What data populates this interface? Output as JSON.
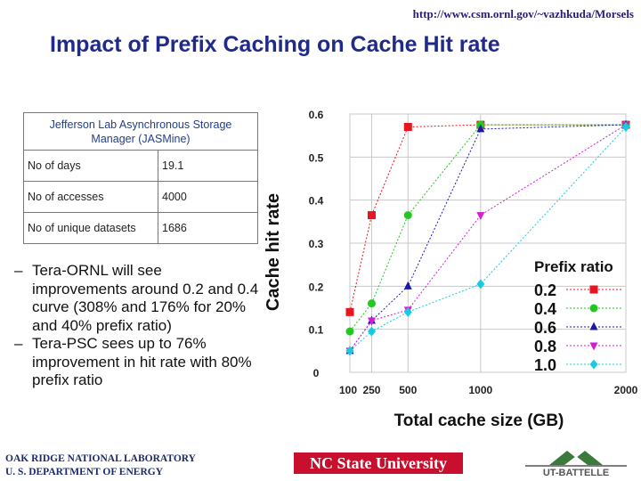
{
  "header": {
    "url": "http://www.csm.ornl.gov/~vazhkuda/Morsels",
    "title": "Impact of Prefix Caching on Cache Hit rate"
  },
  "info_table": {
    "heading": "Jefferson Lab Asynchronous Storage Manager (JASMine)",
    "rows": [
      {
        "label": "No of days",
        "value": "19.1"
      },
      {
        "label": "No of accesses",
        "value": "4000"
      },
      {
        "label": "No of unique datasets",
        "value": "1686"
      }
    ]
  },
  "bullets": [
    {
      "dash": "–",
      "text": "Tera-ORNL will see improvements around 0.2 and 0.4 curve (308% and 176% for 20% and 40% prefix ratio)"
    },
    {
      "dash": "–",
      "text": "Tera-PSC sees up to 76% improvement in hit rate with 80% prefix ratio"
    }
  ],
  "footer": {
    "org_line1": "OAK RIDGE NATIONAL LABORATORY",
    "org_line2": "U. S. DEPARTMENT OF ENERGY",
    "ncstate": "NC State University",
    "ut": "UT-BATTELLE"
  },
  "chart_data": {
    "type": "line",
    "title": "",
    "xlabel": "Total cache size (GB)",
    "ylabel": "Cache hit rate",
    "x": [
      100,
      250,
      500,
      1000,
      2000
    ],
    "x_tick_labels": [
      "100",
      "250",
      "500",
      "1000",
      "2000"
    ],
    "xlim": [
      100,
      2000
    ],
    "ylim": [
      0,
      0.6
    ],
    "y_ticks": [
      0,
      0.1,
      0.2,
      0.3,
      0.4,
      0.5,
      0.6
    ],
    "y_tick_labels": [
      "0",
      "0.1",
      "0.2",
      "0.3",
      "0.4",
      "0.5",
      "0.6"
    ],
    "grid": true,
    "legend_title": "Prefix ratio",
    "legend_position": "lower-right",
    "series": [
      {
        "name": "0.2",
        "color": "#e8141e",
        "marker": "square",
        "values": [
          0.14,
          0.365,
          0.57,
          0.575,
          0.575
        ]
      },
      {
        "name": "0.4",
        "color": "#22c722",
        "marker": "circle",
        "values": [
          0.095,
          0.16,
          0.365,
          0.575,
          0.575
        ]
      },
      {
        "name": "0.6",
        "color": "#1a1aa8",
        "marker": "triangle",
        "values": [
          0.05,
          0.12,
          0.2,
          0.565,
          0.575
        ]
      },
      {
        "name": "0.8",
        "color": "#d81ad8",
        "marker": "triangle-down",
        "values": [
          0.05,
          0.12,
          0.145,
          0.365,
          0.575
        ]
      },
      {
        "name": "1.0",
        "color": "#19c9e0",
        "marker": "diamond",
        "values": [
          0.05,
          0.095,
          0.14,
          0.205,
          0.57
        ]
      }
    ]
  }
}
